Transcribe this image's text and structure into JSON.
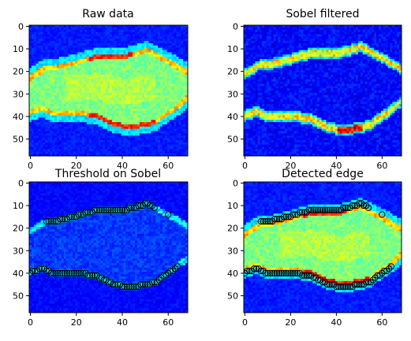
{
  "chart_data": [
    {
      "type": "heatmap",
      "title": "Raw data",
      "xlim": [
        0,
        68
      ],
      "ylim": [
        57,
        0
      ],
      "xticks": [
        "0",
        "20",
        "40",
        "60"
      ],
      "yticks": [
        "0",
        "10",
        "20",
        "30",
        "40",
        "50"
      ],
      "colormap": "jet",
      "image": "raw",
      "markers": []
    },
    {
      "type": "heatmap",
      "title": "Sobel filtered",
      "xlim": [
        0,
        68
      ],
      "ylim": [
        57,
        0
      ],
      "xticks": [
        "0",
        "20",
        "40",
        "60"
      ],
      "yticks": [
        "0",
        "10",
        "20",
        "30",
        "40",
        "50"
      ],
      "colormap": "jet",
      "image": "sobel",
      "markers": []
    },
    {
      "type": "heatmap",
      "title": "Threshold on Sobel",
      "xlim": [
        0,
        68
      ],
      "ylim": [
        57,
        0
      ],
      "xticks": [
        "0",
        "20",
        "40",
        "60"
      ],
      "yticks": [
        "0",
        "10",
        "20",
        "30",
        "40",
        "50"
      ],
      "colormap": "jet",
      "image": "threshold",
      "markers": "edge"
    },
    {
      "type": "heatmap",
      "title": "Detected edge",
      "xlim": [
        0,
        68
      ],
      "ylim": [
        57,
        0
      ],
      "xticks": [
        "0",
        "20",
        "40",
        "60"
      ],
      "yticks": [
        "0",
        "10",
        "20",
        "30",
        "40",
        "50"
      ],
      "colormap": "jet",
      "image": "raw",
      "markers": "edge"
    }
  ],
  "edge_points": {
    "upper": [
      [
        7,
        17
      ],
      [
        8,
        17
      ],
      [
        9,
        17
      ],
      [
        10,
        17
      ],
      [
        11,
        17
      ],
      [
        12,
        17
      ],
      [
        13,
        16
      ],
      [
        14,
        16
      ],
      [
        15,
        16
      ],
      [
        16,
        16
      ],
      [
        17,
        15
      ],
      [
        18,
        15
      ],
      [
        19,
        15
      ],
      [
        20,
        15
      ],
      [
        21,
        14
      ],
      [
        22,
        14
      ],
      [
        23,
        14
      ],
      [
        24,
        13
      ],
      [
        25,
        13
      ],
      [
        26,
        13
      ],
      [
        27,
        13
      ],
      [
        28,
        12
      ],
      [
        29,
        12
      ],
      [
        30,
        12
      ],
      [
        31,
        12
      ],
      [
        32,
        12
      ],
      [
        33,
        12
      ],
      [
        34,
        12
      ],
      [
        35,
        12
      ],
      [
        36,
        12
      ],
      [
        37,
        12
      ],
      [
        38,
        12
      ],
      [
        39,
        12
      ],
      [
        40,
        12
      ],
      [
        41,
        12
      ],
      [
        42,
        12
      ],
      [
        43,
        11
      ],
      [
        44,
        11
      ],
      [
        45,
        11
      ],
      [
        46,
        11
      ],
      [
        47,
        10
      ],
      [
        48,
        10
      ],
      [
        49,
        10
      ],
      [
        50,
        9
      ],
      [
        51,
        9
      ],
      [
        52,
        10
      ],
      [
        53,
        10
      ],
      [
        54,
        11
      ],
      [
        60,
        14
      ]
    ],
    "lower": [
      [
        0,
        40
      ],
      [
        1,
        39
      ],
      [
        2,
        39
      ],
      [
        3,
        39
      ],
      [
        4,
        38
      ],
      [
        5,
        38
      ],
      [
        6,
        38
      ],
      [
        7,
        39
      ],
      [
        8,
        39
      ],
      [
        9,
        40
      ],
      [
        10,
        40
      ],
      [
        11,
        40
      ],
      [
        12,
        40
      ],
      [
        13,
        40
      ],
      [
        14,
        40
      ],
      [
        15,
        40
      ],
      [
        16,
        40
      ],
      [
        17,
        40
      ],
      [
        18,
        40
      ],
      [
        19,
        40
      ],
      [
        20,
        40
      ],
      [
        21,
        40
      ],
      [
        22,
        40
      ],
      [
        23,
        40
      ],
      [
        24,
        40
      ],
      [
        25,
        41
      ],
      [
        26,
        41
      ],
      [
        27,
        41
      ],
      [
        28,
        41
      ],
      [
        29,
        41
      ],
      [
        30,
        42
      ],
      [
        31,
        42
      ],
      [
        32,
        43
      ],
      [
        33,
        43
      ],
      [
        34,
        44
      ],
      [
        35,
        44
      ],
      [
        36,
        45
      ],
      [
        37,
        45
      ],
      [
        38,
        45
      ],
      [
        39,
        45
      ],
      [
        40,
        46
      ],
      [
        41,
        46
      ],
      [
        42,
        46
      ],
      [
        43,
        46
      ],
      [
        44,
        46
      ],
      [
        45,
        46
      ],
      [
        46,
        46
      ],
      [
        47,
        46
      ],
      [
        48,
        45
      ],
      [
        49,
        45
      ],
      [
        50,
        45
      ],
      [
        51,
        45
      ],
      [
        52,
        45
      ],
      [
        53,
        44
      ],
      [
        54,
        44
      ],
      [
        55,
        44
      ],
      [
        56,
        43
      ],
      [
        57,
        42
      ],
      [
        58,
        41
      ],
      [
        59,
        41
      ],
      [
        60,
        40
      ],
      [
        61,
        39
      ],
      [
        62,
        39
      ],
      [
        63,
        38
      ],
      [
        64,
        37
      ]
    ]
  }
}
